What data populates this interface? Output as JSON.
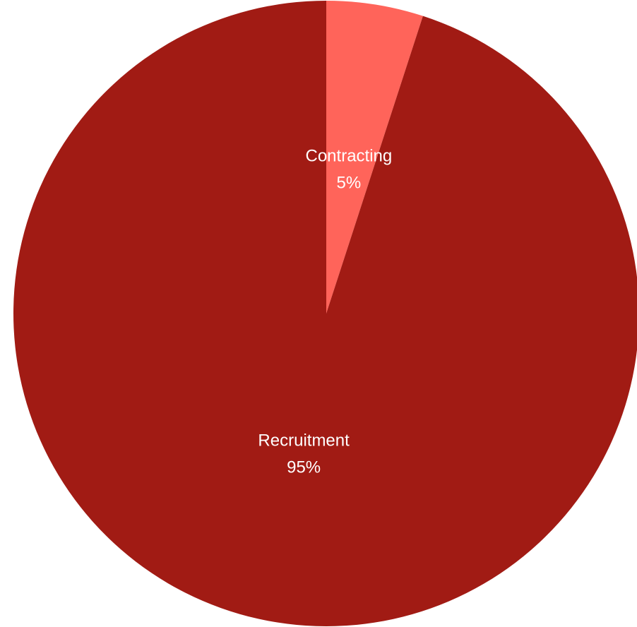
{
  "chart_data": {
    "type": "pie",
    "title": "",
    "categories": [
      "Contracting",
      "Recruitment"
    ],
    "values": [
      5,
      95
    ],
    "labels": [
      "5%",
      "95%"
    ],
    "colors": [
      "#ff645a",
      "#a11b14"
    ],
    "start_angle": "top",
    "direction": "clockwise"
  }
}
